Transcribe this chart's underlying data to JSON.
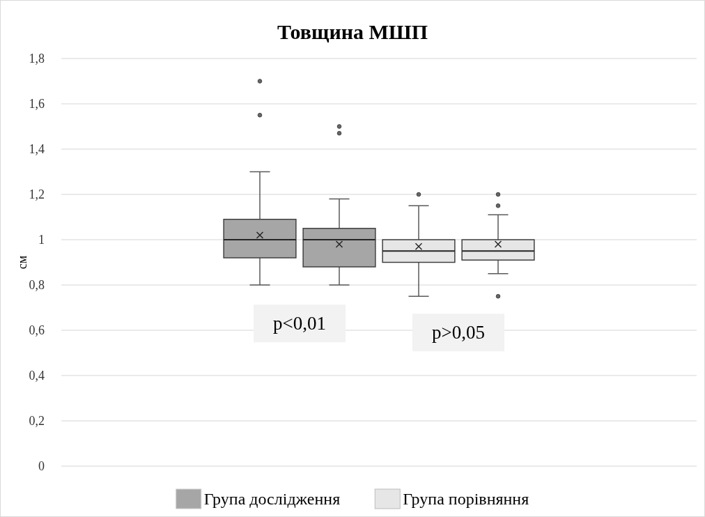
{
  "chart_data": {
    "type": "box",
    "title": "Товщина МШП",
    "ylabel": "см",
    "categories": [
      null,
      null,
      null,
      null,
      null,
      null,
      null,
      null
    ],
    "ylim": [
      0,
      1.8
    ],
    "yticks": [
      0,
      {
        "value": 0.2,
        "label": "0,2"
      },
      {
        "value": 0.4,
        "label": "0,4"
      },
      {
        "value": 0.6,
        "label": "0,6"
      },
      {
        "value": 0.8,
        "label": "0,8"
      },
      1,
      {
        "value": 1.2,
        "label": "1,2"
      },
      {
        "value": 1.4,
        "label": "1,4"
      },
      {
        "value": 1.6,
        "label": "1,6"
      },
      {
        "value": 1.8,
        "label": "1,8"
      }
    ],
    "grid": "y",
    "legend": "bottom",
    "series": [
      {
        "name": "Група дослідження",
        "color": "#a6a6a6",
        "boxes": [
          null,
          null,
          {
            "low": 0.8,
            "q1": 0.92,
            "median": 1.0,
            "q3": 1.09,
            "high": 1.3,
            "mean": 1.02,
            "outliers": [
              1.7,
              1.55
            ]
          },
          {
            "low": 0.8,
            "q1": 0.88,
            "median": 1.0,
            "q3": 1.05,
            "high": 1.18,
            "mean": 0.98,
            "outliers": [
              1.5,
              1.47
            ]
          },
          null,
          null,
          null,
          null
        ]
      },
      {
        "name": "Група порівняння",
        "color": "#e6e6e6",
        "boxes": [
          null,
          null,
          null,
          null,
          {
            "low": 0.75,
            "q1": 0.9,
            "median": 0.95,
            "q3": 1.0,
            "high": 1.15,
            "mean": 0.97,
            "outliers": [
              1.2
            ]
          },
          {
            "low": 0.85,
            "q1": 0.91,
            "median": 0.95,
            "q3": 1.0,
            "high": 1.11,
            "mean": 0.98,
            "outliers": [
              1.2,
              1.15,
              0.75
            ]
          },
          null,
          null
        ]
      }
    ],
    "annotations": [
      "p<0,01",
      "p>0,05"
    ]
  }
}
